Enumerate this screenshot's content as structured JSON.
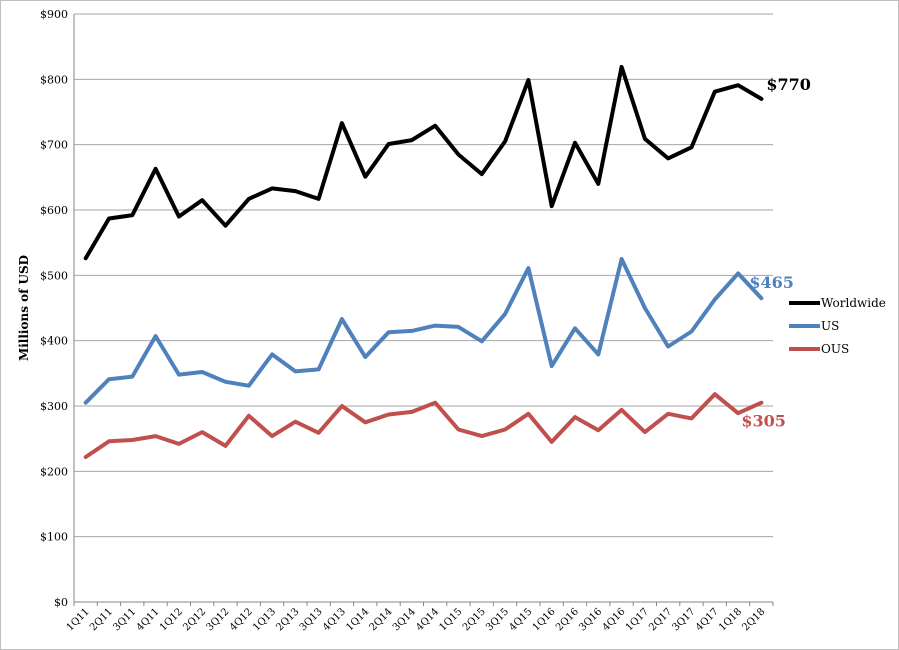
{
  "chart_data": {
    "type": "line",
    "title": "",
    "xlabel": "",
    "ylabel": "Millions of USD",
    "ylim": [
      0,
      900
    ],
    "y_ticks": [
      "$0",
      "$100",
      "$200",
      "$300",
      "$400",
      "$500",
      "$600",
      "$700",
      "$800",
      "$900"
    ],
    "y_tick_values": [
      0,
      100,
      200,
      300,
      400,
      500,
      600,
      700,
      800,
      900
    ],
    "grid": "horizontal",
    "legend_position": "right",
    "categories": [
      "1Q11",
      "2Q11",
      "3Q11",
      "4Q11",
      "1Q12",
      "2Q12",
      "3Q12",
      "4Q12",
      "1Q13",
      "2Q13",
      "3Q13",
      "4Q13",
      "1Q14",
      "2Q14",
      "3Q14",
      "4Q14",
      "1Q15",
      "2Q15",
      "3Q15",
      "4Q15",
      "1Q16",
      "2Q16",
      "3Q16",
      "4Q16",
      "1Q17",
      "2Q17",
      "3Q17",
      "4Q17",
      "1Q18",
      "2Q18"
    ],
    "series": [
      {
        "name": "Worldwide",
        "color": "#000000",
        "end_label": "$770",
        "values": [
          526,
          587,
          592,
          663,
          590,
          615,
          576,
          617,
          633,
          629,
          617,
          733,
          651,
          701,
          707,
          729,
          685,
          655,
          705,
          799,
          606,
          703,
          640,
          819,
          709,
          679,
          696,
          781,
          791,
          770
        ]
      },
      {
        "name": "US",
        "color": "#4f81bd",
        "end_label": "$465",
        "values": [
          305,
          341,
          345,
          407,
          348,
          352,
          337,
          331,
          379,
          353,
          356,
          433,
          375,
          413,
          415,
          423,
          421,
          399,
          441,
          511,
          361,
          419,
          379,
          525,
          450,
          391,
          414,
          463,
          503,
          465
        ]
      },
      {
        "name": "OUS",
        "color": "#c0504d",
        "end_label": "$305",
        "values": [
          222,
          246,
          248,
          254,
          242,
          260,
          239,
          285,
          254,
          276,
          259,
          300,
          275,
          287,
          291,
          305,
          264,
          254,
          264,
          288,
          245,
          283,
          263,
          294,
          260,
          288,
          281,
          318,
          289,
          305
        ]
      }
    ]
  }
}
